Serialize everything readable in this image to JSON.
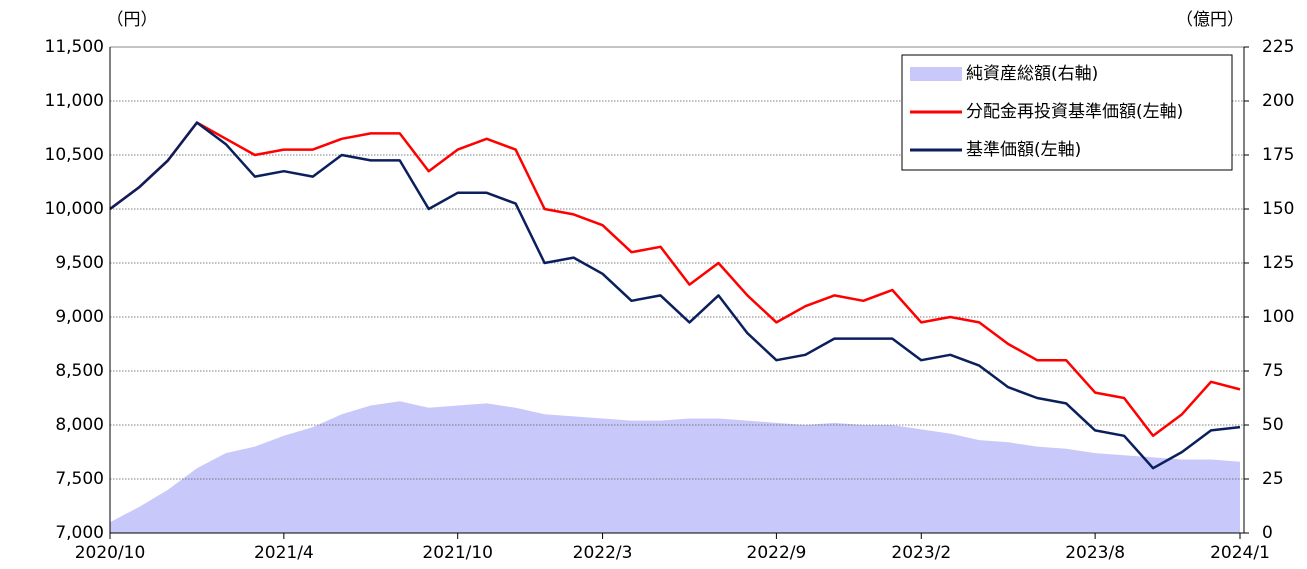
{
  "chart_data": {
    "type": "line",
    "left_axis_label": "（円）",
    "right_axis_label": "（億円）",
    "categories": [
      "2020/10",
      null,
      null,
      null,
      null,
      null,
      "2021/4",
      null,
      null,
      null,
      null,
      null,
      "2021/10",
      null,
      null,
      null,
      null,
      "2022/3",
      null,
      null,
      null,
      null,
      null,
      "2022/9",
      null,
      null,
      null,
      null,
      "2023/2",
      null,
      null,
      null,
      null,
      null,
      "2023/8",
      null,
      null,
      null,
      null,
      "2024/1"
    ],
    "ylim": [
      7000,
      11500
    ],
    "yticks": [
      {
        "value": 7000,
        "label": "7,000"
      },
      {
        "value": 7500,
        "label": "7,500"
      },
      {
        "value": 8000,
        "label": "8,000"
      },
      {
        "value": 8500,
        "label": "8,500"
      },
      {
        "value": 9000,
        "label": "9,000"
      },
      {
        "value": 9500,
        "label": "9,500"
      },
      {
        "value": 10000,
        "label": "10,000"
      },
      {
        "value": 10500,
        "label": "10,500"
      },
      {
        "value": 11000,
        "label": "11,000"
      },
      {
        "value": 11500,
        "label": "11,500"
      }
    ],
    "y2lim": [
      0,
      225
    ],
    "y2ticks": [
      0,
      25,
      50,
      75,
      100,
      125,
      150,
      175,
      200,
      225
    ],
    "grid": true,
    "legend": "top-right",
    "series": [
      {
        "name": "純資産総額(右軸)",
        "type": "area",
        "axis": "y2",
        "color": "#c8c8fa",
        "values": [
          5,
          12,
          20,
          30,
          37,
          40,
          45,
          49,
          55,
          59,
          61,
          58,
          59,
          60,
          58,
          55,
          54,
          53,
          52,
          52,
          53,
          53,
          52,
          51,
          50,
          51,
          50,
          50,
          48,
          46,
          43,
          42,
          40,
          39,
          37,
          36,
          35,
          34,
          34,
          33
        ]
      },
      {
        "name": "分配金再投資基準価額(左軸)",
        "type": "line",
        "color": "#ff0000",
        "values": [
          10000,
          10200,
          10450,
          10800,
          10650,
          10500,
          10550,
          10550,
          10650,
          10700,
          10700,
          10350,
          10550,
          10650,
          10550,
          10000,
          9950,
          9850,
          9600,
          9650,
          9300,
          9500,
          9200,
          8950,
          9100,
          9200,
          9150,
          9250,
          8950,
          9000,
          8950,
          8750,
          8600,
          8600,
          8300,
          8250,
          7900,
          8100,
          8400,
          8330
        ]
      },
      {
        "name": "基準価額(左軸)",
        "type": "line",
        "color": "#0a1f5c",
        "values": [
          10000,
          10200,
          10450,
          10800,
          10600,
          10300,
          10350,
          10300,
          10500,
          10450,
          10450,
          10000,
          10150,
          10150,
          10050,
          9500,
          9550,
          9400,
          9150,
          9200,
          8950,
          9200,
          8850,
          8600,
          8650,
          8800,
          8800,
          8800,
          8600,
          8650,
          8550,
          8350,
          8250,
          8200,
          7950,
          7900,
          7600,
          7750,
          7950,
          7980
        ]
      }
    ]
  }
}
